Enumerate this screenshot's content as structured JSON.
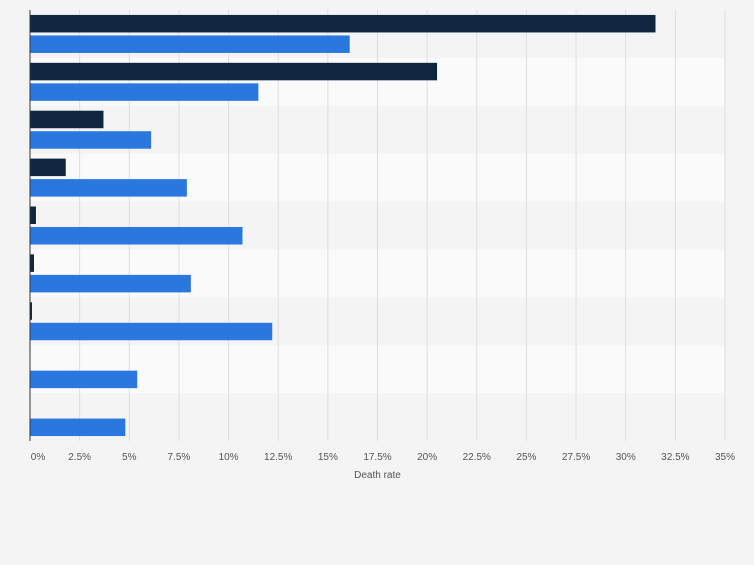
{
  "chart_data": {
    "type": "bar",
    "orientation": "horizontal",
    "categories": [
      "",
      "",
      "",
      "",
      "",
      "",
      "",
      "",
      ""
    ],
    "series": [
      {
        "color": "#10263f",
        "values": [
          31.5,
          20.5,
          3.7,
          1.8,
          0.3,
          0.2,
          0.1,
          0,
          0
        ]
      },
      {
        "color": "#2a78df",
        "values": [
          16.1,
          11.5,
          6.1,
          7.9,
          10.7,
          8.1,
          12.2,
          5.4,
          4.8
        ]
      }
    ],
    "xlabel": "Death rate",
    "xlim": [
      0,
      35
    ],
    "xticks": [
      "0%",
      "2.5%",
      "5%",
      "7.5%",
      "10%",
      "12.5%",
      "15%",
      "17.5%",
      "20%",
      "22.5%",
      "25%",
      "27.5%",
      "30%",
      "32.5%",
      "35%"
    ],
    "grid": true,
    "legend": "none"
  }
}
